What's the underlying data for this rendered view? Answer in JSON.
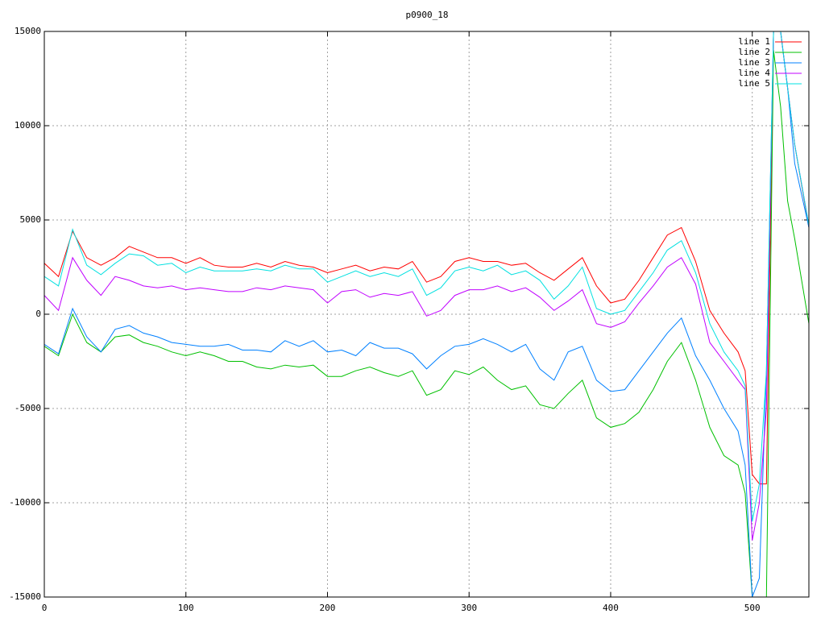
{
  "chart_data": {
    "type": "line",
    "title": "p0900_18",
    "x": [
      0,
      10,
      20,
      30,
      40,
      50,
      60,
      70,
      80,
      90,
      100,
      110,
      120,
      130,
      140,
      150,
      160,
      170,
      180,
      190,
      200,
      210,
      220,
      230,
      240,
      250,
      260,
      270,
      280,
      290,
      300,
      310,
      320,
      330,
      340,
      350,
      360,
      370,
      380,
      390,
      400,
      410,
      420,
      430,
      440,
      450,
      460,
      470,
      480,
      490,
      495,
      500,
      505,
      510,
      515,
      520,
      525,
      530,
      540
    ],
    "series": [
      {
        "name": "line 1",
        "color": "#ff0000",
        "values": [
          2700,
          2000,
          4400,
          3000,
          2600,
          3000,
          3600,
          3300,
          3000,
          3000,
          2700,
          3000,
          2600,
          2500,
          2500,
          2700,
          2500,
          2800,
          2600,
          2500,
          2200,
          2400,
          2600,
          2300,
          2500,
          2400,
          2800,
          1700,
          2000,
          2800,
          3000,
          2800,
          2800,
          2600,
          2700,
          2200,
          1800,
          2400,
          3000,
          1500,
          600,
          800,
          1800,
          3000,
          4200,
          4600,
          2800,
          200,
          -1000,
          -2000,
          -3000,
          -8500,
          -9000,
          -9000,
          15000,
          15000,
          12000,
          9000,
          4600
        ]
      },
      {
        "name": "line 2",
        "color": "#00c000",
        "values": [
          -1700,
          -2200,
          0,
          -1500,
          -2000,
          -1200,
          -1100,
          -1500,
          -1700,
          -2000,
          -2200,
          -2000,
          -2200,
          -2500,
          -2500,
          -2800,
          -2900,
          -2700,
          -2800,
          -2700,
          -3300,
          -3300,
          -3000,
          -2800,
          -3100,
          -3300,
          -3000,
          -4300,
          -4000,
          -3000,
          -3200,
          -2800,
          -3500,
          -4000,
          -3800,
          -4800,
          -5000,
          -4200,
          -3500,
          -5500,
          -6000,
          -5800,
          -5200,
          -4000,
          -2500,
          -1500,
          -3500,
          -6000,
          -7500,
          -8000,
          -9500,
          -15000,
          -15000,
          -15000,
          14000,
          11000,
          6000,
          4000,
          -500
        ]
      },
      {
        "name": "line 3",
        "color": "#0080ff",
        "values": [
          -1600,
          -2100,
          300,
          -1200,
          -2000,
          -800,
          -600,
          -1000,
          -1200,
          -1500,
          -1600,
          -1700,
          -1700,
          -1600,
          -1900,
          -1900,
          -2000,
          -1400,
          -1700,
          -1400,
          -2000,
          -1900,
          -2200,
          -1500,
          -1800,
          -1800,
          -2100,
          -2900,
          -2200,
          -1700,
          -1600,
          -1300,
          -1600,
          -2000,
          -1600,
          -2900,
          -3500,
          -2000,
          -1700,
          -3500,
          -4100,
          -4000,
          -3000,
          -2000,
          -1000,
          -200,
          -2200,
          -3500,
          -5000,
          -6200,
          -8000,
          -15000,
          -14000,
          -3000,
          15000,
          15000,
          12000,
          8000,
          4600
        ]
      },
      {
        "name": "line 4",
        "color": "#c000ff",
        "values": [
          1000,
          200,
          3000,
          1800,
          1000,
          2000,
          1800,
          1500,
          1400,
          1500,
          1300,
          1400,
          1300,
          1200,
          1200,
          1400,
          1300,
          1500,
          1400,
          1300,
          600,
          1200,
          1300,
          900,
          1100,
          1000,
          1200,
          -100,
          200,
          1000,
          1300,
          1300,
          1500,
          1200,
          1400,
          900,
          200,
          700,
          1300,
          -500,
          -700,
          -400,
          600,
          1500,
          2500,
          3000,
          1600,
          -1500,
          -2500,
          -3500,
          -4000,
          -12000,
          -10000,
          -5000,
          15000,
          15000,
          12000,
          9000,
          4700
        ]
      },
      {
        "name": "line 5",
        "color": "#00e0e0",
        "values": [
          2000,
          1500,
          4500,
          2600,
          2100,
          2700,
          3200,
          3100,
          2600,
          2700,
          2200,
          2500,
          2300,
          2300,
          2300,
          2400,
          2300,
          2600,
          2400,
          2400,
          1700,
          2000,
          2300,
          2000,
          2200,
          2000,
          2400,
          1000,
          1400,
          2300,
          2500,
          2300,
          2600,
          2100,
          2300,
          1800,
          800,
          1500,
          2500,
          300,
          0,
          200,
          1200,
          2200,
          3400,
          3900,
          2200,
          -500,
          -2000,
          -3000,
          -3800,
          -11000,
          -9000,
          -3000,
          15000,
          15000,
          12000,
          9000,
          4700
        ]
      }
    ],
    "xlim": [
      0,
      540
    ],
    "ylim": [
      -15000,
      15000
    ],
    "xticks": [
      0,
      100,
      200,
      300,
      400,
      500
    ],
    "yticks": [
      -15000,
      -10000,
      -5000,
      0,
      5000,
      10000,
      15000
    ],
    "grid": true,
    "legend": "top-right"
  }
}
